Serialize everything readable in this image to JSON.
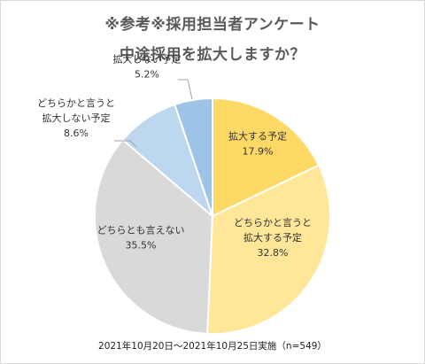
{
  "chart_data": {
    "type": "pie",
    "title_lines": [
      "※参考※採用担当者アンケート",
      "中途採用を拡大しますか？"
    ],
    "start_angle_deg": 0,
    "direction": "clockwise",
    "slices": [
      {
        "label_lines": [
          "拡大する予定"
        ],
        "value": 17.9,
        "value_label": "17.9%",
        "color": "#ffd966"
      },
      {
        "label_lines": [
          "どちらかと言うと",
          "拡大する予定"
        ],
        "value": 32.8,
        "value_label": "32.8%",
        "color": "#ffe699"
      },
      {
        "label_lines": [
          "どちらとも言えない"
        ],
        "value": 35.5,
        "value_label": "35.5%",
        "color": "#d9d9d9"
      },
      {
        "label_lines": [
          "どちらかと言うと",
          "拡大しない予定"
        ],
        "value": 8.6,
        "value_label": "8.6%",
        "color": "#bdd7ee"
      },
      {
        "label_lines": [
          "拡大しない予定"
        ],
        "value": 5.2,
        "value_label": "5.2%",
        "color": "#9dc3e6"
      }
    ],
    "footnote": "2021年10月20日～2021年10月25日実施（n=549）"
  }
}
